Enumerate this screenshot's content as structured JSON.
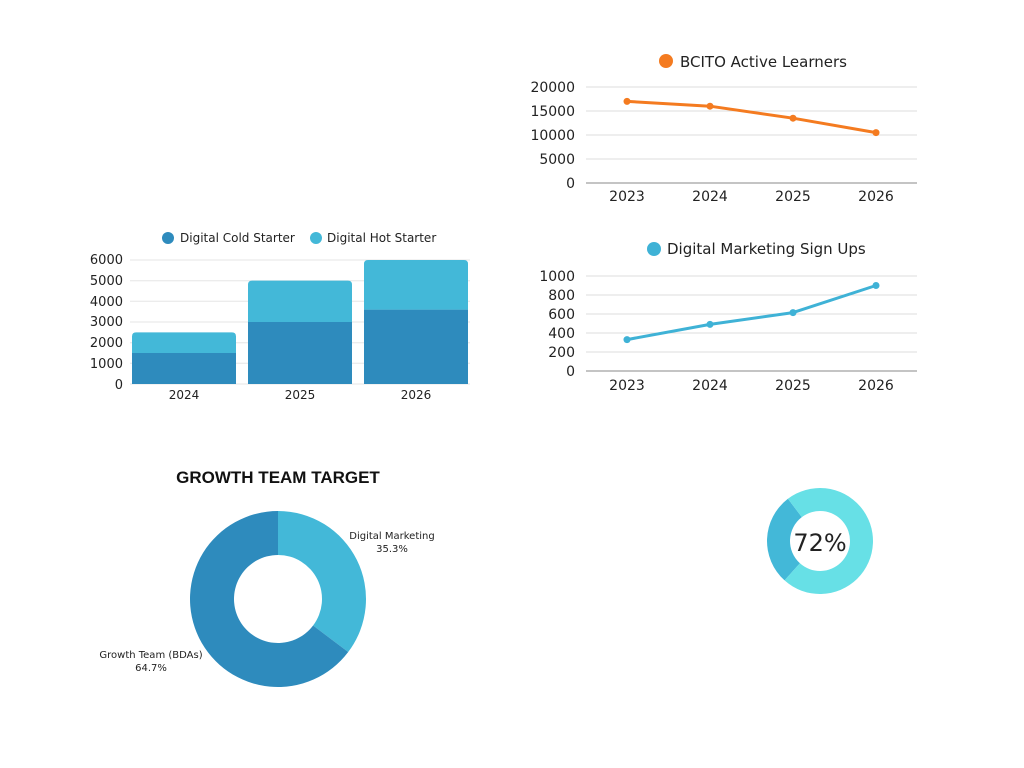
{
  "colors": {
    "dark_blue": "#2e8bbd",
    "light_blue": "#43b8d8",
    "orange": "#f47b20",
    "teal": "#3fb2d6",
    "cyan": "#67e0e6",
    "grid": "#dcdcdc",
    "axis": "#555555"
  },
  "chart_data": [
    {
      "id": "bcito",
      "type": "line",
      "title": "BCITO Active Learners",
      "legend": [
        "BCITO Active Learners"
      ],
      "categories": [
        "2023",
        "2024",
        "2025",
        "2026"
      ],
      "values": [
        17000,
        16000,
        13500,
        10500
      ],
      "ylim": [
        0,
        20000
      ],
      "yticks": [
        0,
        5000,
        10000,
        15000,
        20000
      ],
      "color": "#f47b20"
    },
    {
      "id": "dmsu",
      "type": "line",
      "title": "Digital Marketing Sign Ups",
      "legend": [
        "Digital Marketing Sign Ups"
      ],
      "categories": [
        "2023",
        "2024",
        "2025",
        "2026"
      ],
      "values": [
        330,
        490,
        615,
        900
      ],
      "ylim": [
        0,
        1000
      ],
      "yticks": [
        0,
        200,
        400,
        600,
        800,
        1000
      ],
      "color": "#3fb2d6"
    },
    {
      "id": "starter",
      "type": "bar",
      "stacked": true,
      "categories": [
        "2024",
        "2025",
        "2026"
      ],
      "series": [
        {
          "name": "Digital Cold Starter",
          "values": [
            1500,
            3000,
            3600
          ],
          "color": "#2e8bbd"
        },
        {
          "name": "Digital Hot Starter",
          "values": [
            1000,
            2000,
            2400
          ],
          "color": "#43b8d8"
        }
      ],
      "ylim": [
        0,
        6000
      ],
      "yticks": [
        0,
        1000,
        2000,
        3000,
        4000,
        5000,
        6000
      ]
    },
    {
      "id": "growth",
      "type": "pie",
      "donut": true,
      "title": "GROWTH TEAM TARGET",
      "slices": [
        {
          "label": "Digital Marketing",
          "pct_label": "35.3%",
          "value": 35.3,
          "color": "#43b8d8"
        },
        {
          "label": "Growth Team (BDAs)",
          "pct_label": "64.7%",
          "value": 64.7,
          "color": "#2e8bbd"
        }
      ]
    },
    {
      "id": "progress",
      "type": "pie",
      "donut": true,
      "center_label": "72%",
      "value": 72,
      "colors": {
        "filled": "#67e0e6",
        "rest": "#43b8d8"
      }
    }
  ]
}
